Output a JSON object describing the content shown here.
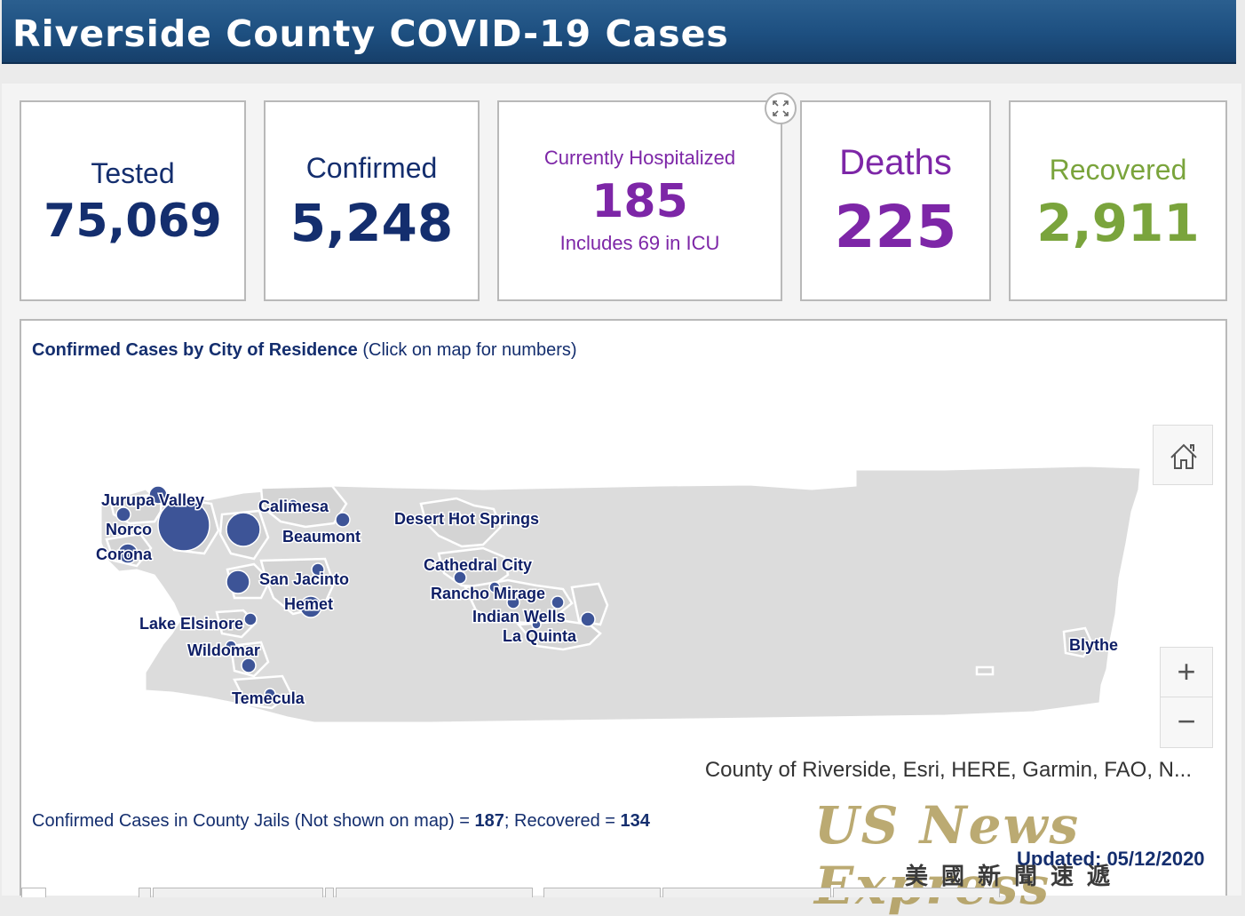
{
  "header": {
    "title": "Riverside County COVID-19 Cases"
  },
  "stats": {
    "tested": {
      "label": "Tested",
      "value": "75,069"
    },
    "confirmed": {
      "label": "Confirmed",
      "value": "5,248"
    },
    "hospitalized": {
      "label": "Currently Hospitalized",
      "value": "185",
      "note": "Includes 69 in ICU"
    },
    "deaths": {
      "label": "Deaths",
      "value": "225"
    },
    "recovered": {
      "label": "Recovered",
      "value": "2,911"
    }
  },
  "map": {
    "title_bold": "Confirmed Cases by City of Residence",
    "title_hint": " (Click on map for numbers)",
    "cities": [
      "Jurupa Valley",
      "Norco",
      "Corona",
      "Calimesa",
      "Beaumont",
      "San Jacinto",
      "Hemet",
      "Lake Elsinore",
      "Wildomar",
      "Temecula",
      "Desert Hot Springs",
      "Cathedral City",
      "Rancho Mirage",
      "Indian Wells",
      "La Quinta",
      "Blythe"
    ],
    "attribution": "County of Riverside, Esri, HERE, Garmin, FAO, N...",
    "zoom_in": "+",
    "zoom_out": "−"
  },
  "footer": {
    "jails_prefix": "Confirmed Cases in County Jails (Not shown on map) = ",
    "jails_confirmed": "187",
    "jails_mid": "; Recovered = ",
    "jails_recovered": "134",
    "updated": "Updated: 05/12/2020"
  },
  "watermark": {
    "text": "US News Express",
    "chinese": "美國新聞速遞"
  },
  "icons": [
    "expand-icon",
    "home-icon",
    "plus-icon",
    "minus-icon"
  ],
  "colors": {
    "navy": "#142e6e",
    "purple": "#7d26a7",
    "green": "#7aa43c",
    "header": "#1d4f80",
    "bubble": "#3d5497"
  }
}
